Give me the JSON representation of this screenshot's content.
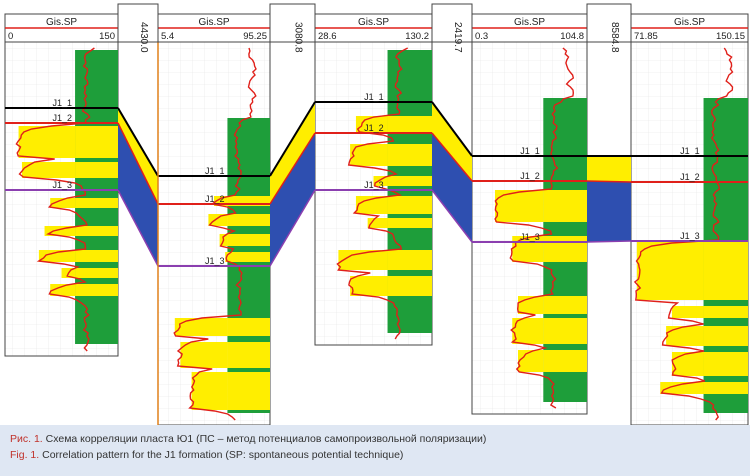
{
  "figure": {
    "wells": [
      {
        "curve": "Gis.SP",
        "min": "0",
        "max": "150",
        "markers": [
          "J1_1",
          "J1_2",
          "J1_3"
        ]
      },
      {
        "curve": "Gis.SP",
        "min": "5.4",
        "max": "95.25",
        "markers": [
          "J1_1",
          "J1_2",
          "J1_3"
        ]
      },
      {
        "curve": "Gis.SP",
        "min": "28.6",
        "max": "130.2",
        "markers": [
          "J1_1",
          "J1_2",
          "J1_3"
        ]
      },
      {
        "curve": "Gis.SP",
        "min": "0.3",
        "max": "104.8",
        "markers": [
          "J1_1",
          "J1_2",
          "J1_3"
        ]
      },
      {
        "curve": "Gis.SP",
        "min": "71.85",
        "max": "150.15",
        "markers": [
          "J1_1",
          "J1_2",
          "J1_3"
        ]
      }
    ],
    "gaps": [
      "4430.0",
      "3080.8",
      "2419.7",
      "8584.8"
    ],
    "colors": {
      "sand": "#ffee00",
      "shale": "#1e9e3a",
      "curve": "#e0201a",
      "j1_1": "#000000",
      "j1_2": "#e0201a",
      "j1_3": "#8b3fb0",
      "zone": "#2e4fb0"
    }
  },
  "caption": {
    "ru_label": "Рис. 1.",
    "ru_text": "Схема корреляции пласта Ю1 (ПС – метод потенциалов самопроизвольной поляризации)",
    "en_label": "Fig. 1.",
    "en_text": "Correlation pattern for the J1 formation (SP: spontaneous potential technique)"
  }
}
